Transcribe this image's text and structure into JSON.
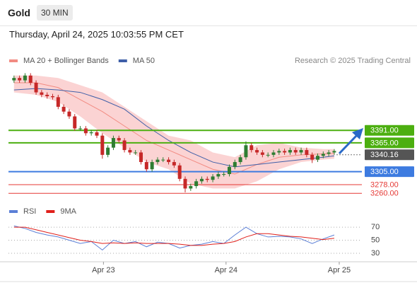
{
  "header": {
    "title": "Gold",
    "timeframe": "30 MIN",
    "datetime": "Thursday, April 24, 2025 10:03:55 PM CET"
  },
  "chart_data": [
    {
      "type": "candlestick",
      "credit": "Research © 2025 Trading Central",
      "xlim": [
        -1,
        63
      ],
      "ylim": [
        3250,
        3515
      ],
      "up_color": "#2e7d32",
      "down_color": "#c62828",
      "x": [
        0,
        1,
        2,
        3,
        4,
        5,
        6,
        7,
        8,
        9,
        10,
        11,
        12,
        13,
        14,
        15,
        16,
        17,
        18,
        19,
        20,
        21,
        22,
        23,
        24,
        25,
        26,
        27,
        28,
        29,
        30,
        31,
        32,
        33,
        34,
        35,
        36,
        37,
        38,
        39,
        40,
        41,
        42,
        43,
        44,
        45,
        46,
        47,
        48,
        49,
        50,
        51,
        52,
        53,
        54,
        55,
        56,
        57,
        58
      ],
      "open": [
        3495,
        3500,
        3495,
        3505,
        3490,
        3470,
        3465,
        3462,
        3460,
        3440,
        3430,
        3420,
        3395,
        3395,
        3385,
        3387,
        3380,
        3340,
        3355,
        3375,
        3370,
        3350,
        3345,
        3345,
        3325,
        3310,
        3325,
        3330,
        3330,
        3325,
        3318,
        3290,
        3270,
        3275,
        3285,
        3290,
        3288,
        3295,
        3300,
        3300,
        3315,
        3325,
        3335,
        3360,
        3350,
        3345,
        3340,
        3340,
        3345,
        3348,
        3345,
        3350,
        3345,
        3350,
        3340,
        3330,
        3338,
        3342,
        3345
      ],
      "high": [
        3505,
        3505,
        3510,
        3510,
        3495,
        3475,
        3470,
        3467,
        3465,
        3445,
        3435,
        3425,
        3400,
        3400,
        3392,
        3392,
        3385,
        3360,
        3380,
        3380,
        3375,
        3355,
        3350,
        3350,
        3330,
        3330,
        3335,
        3335,
        3335,
        3330,
        3323,
        3295,
        3280,
        3290,
        3295,
        3295,
        3300,
        3305,
        3305,
        3320,
        3330,
        3340,
        3368,
        3365,
        3355,
        3350,
        3345,
        3350,
        3353,
        3353,
        3355,
        3355,
        3355,
        3355,
        3345,
        3343,
        3347,
        3350,
        3352
      ],
      "low": [
        3490,
        3490,
        3490,
        3485,
        3465,
        3460,
        3457,
        3455,
        3435,
        3425,
        3415,
        3390,
        3390,
        3380,
        3380,
        3375,
        3332,
        3335,
        3350,
        3365,
        3345,
        3340,
        3340,
        3320,
        3305,
        3305,
        3320,
        3325,
        3320,
        3313,
        3285,
        3262,
        3265,
        3270,
        3280,
        3283,
        3283,
        3290,
        3295,
        3295,
        3310,
        3320,
        3330,
        3345,
        3340,
        3335,
        3335,
        3335,
        3340,
        3340,
        3340,
        3340,
        3340,
        3335,
        3323,
        3325,
        3333,
        3337,
        3340
      ],
      "close": [
        3500,
        3495,
        3505,
        3490,
        3470,
        3465,
        3462,
        3460,
        3440,
        3430,
        3420,
        3395,
        3395,
        3385,
        3387,
        3380,
        3340,
        3355,
        3375,
        3370,
        3350,
        3345,
        3345,
        3325,
        3310,
        3325,
        3330,
        3330,
        3325,
        3318,
        3290,
        3270,
        3275,
        3285,
        3290,
        3288,
        3295,
        3300,
        3300,
        3315,
        3325,
        3335,
        3360,
        3350,
        3345,
        3340,
        3340,
        3345,
        3348,
        3345,
        3350,
        3345,
        3350,
        3340,
        3330,
        3338,
        3342,
        3345,
        3348
      ],
      "series": [
        {
          "name": "MA 20 + Bollinger Bands",
          "color": "#f28b82",
          "band_color": "#fbd3d3",
          "x": [
            0,
            4,
            8,
            12,
            16,
            20,
            24,
            28,
            32,
            36,
            40,
            44,
            48,
            52,
            56,
            58
          ],
          "values": [
            3490,
            3490,
            3480,
            3455,
            3430,
            3400,
            3370,
            3350,
            3330,
            3310,
            3300,
            3320,
            3335,
            3340,
            3342,
            3343
          ],
          "upper": [
            3505,
            3505,
            3500,
            3485,
            3470,
            3440,
            3410,
            3380,
            3370,
            3345,
            3335,
            3360,
            3365,
            3355,
            3352,
            3352
          ],
          "lower": [
            3470,
            3465,
            3450,
            3420,
            3385,
            3355,
            3325,
            3310,
            3280,
            3270,
            3270,
            3285,
            3310,
            3325,
            3330,
            3332
          ]
        },
        {
          "name": "MA 50",
          "color": "#3f5fa8",
          "x": [
            0,
            4,
            8,
            12,
            16,
            20,
            24,
            28,
            32,
            36,
            40,
            44,
            48,
            52,
            56,
            58
          ],
          "values": [
            3475,
            3478,
            3475,
            3470,
            3455,
            3435,
            3400,
            3370,
            3345,
            3325,
            3315,
            3320,
            3325,
            3330,
            3335,
            3338
          ]
        }
      ],
      "levels": [
        {
          "value": 3391,
          "label": "3391.00",
          "color": "#4caf10",
          "boxed": true
        },
        {
          "value": 3365,
          "label": "3365.00",
          "color": "#4caf10",
          "boxed": true
        },
        {
          "value": 3340.16,
          "label": "3340.16",
          "color": "#555555",
          "boxed": true
        },
        {
          "value": 3305,
          "label": "3305.00",
          "color": "#3d7be0",
          "boxed": true
        },
        {
          "value": 3278,
          "label": "3278.00",
          "color": "#e53935",
          "boxed": false
        },
        {
          "value": 3260,
          "label": "3260.00",
          "color": "#e53935",
          "boxed": false
        }
      ]
    },
    {
      "type": "line",
      "xlim": [
        -1,
        63
      ],
      "ylim": [
        17,
        95
      ],
      "yticks": [
        30,
        50,
        70
      ],
      "x": [
        0,
        2,
        4,
        6,
        8,
        10,
        12,
        14,
        16,
        18,
        20,
        22,
        24,
        26,
        28,
        30,
        32,
        34,
        36,
        38,
        40,
        42,
        44,
        46,
        48,
        50,
        52,
        54,
        56,
        58
      ],
      "xticks": [
        {
          "value": 16.2,
          "label": "Apr 23"
        },
        {
          "value": 38.4,
          "label": "Apr 24"
        },
        {
          "value": 58.9,
          "label": "Apr 25"
        }
      ],
      "series": [
        {
          "name": "RSI",
          "color": "#5b7fd6",
          "values": [
            72,
            68,
            62,
            58,
            55,
            50,
            45,
            48,
            35,
            50,
            45,
            48,
            40,
            47,
            45,
            38,
            42,
            44,
            48,
            45,
            58,
            70,
            60,
            55,
            56,
            55,
            52,
            45,
            52,
            58
          ]
        },
        {
          "name": "9MA",
          "color": "#e0201b",
          "values": [
            70,
            70,
            66,
            62,
            58,
            54,
            50,
            48,
            45,
            46,
            45,
            46,
            45,
            45,
            45,
            44,
            42,
            42,
            44,
            45,
            48,
            55,
            60,
            60,
            58,
            56,
            55,
            53,
            51,
            53
          ]
        }
      ]
    }
  ]
}
